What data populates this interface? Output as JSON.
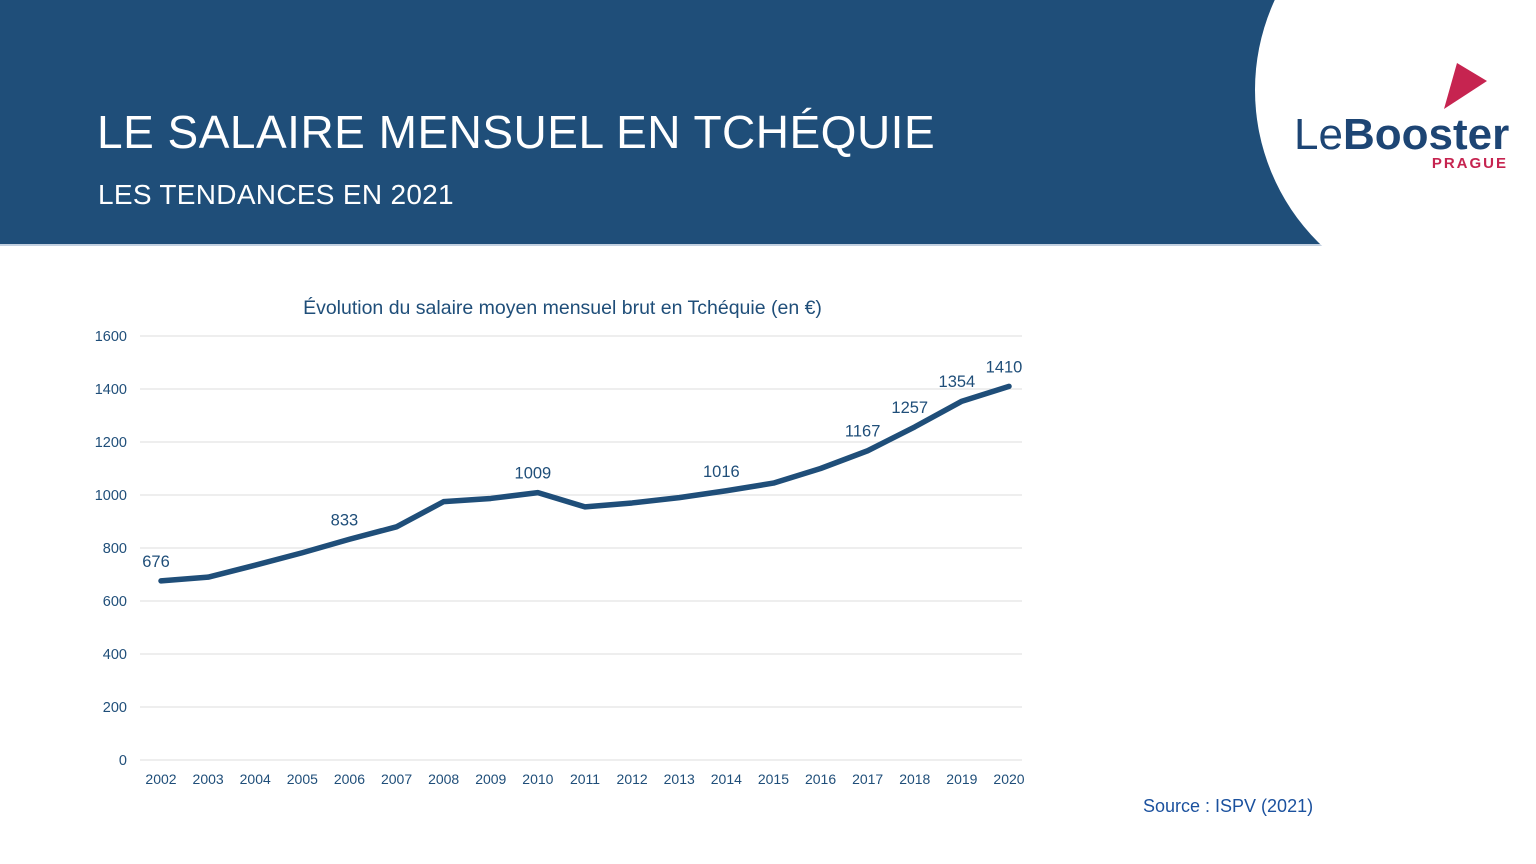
{
  "header": {
    "title": "LE SALAIRE MENSUEL EN TCHÉQUIE",
    "subtitle": "LES TENDANCES EN 2021",
    "background_color": "#1F4E79"
  },
  "logo": {
    "part1": "Le",
    "part2": "Booster",
    "city": "PRAGUE",
    "flame_icon": "red-flame-triangle",
    "navy_color": "#1D4574",
    "red_color": "#C62450"
  },
  "chart_data": {
    "type": "line",
    "title": "Évolution du salaire moyen mensuel brut en Tchéquie (en €)",
    "x": [
      2002,
      2003,
      2004,
      2005,
      2006,
      2007,
      2008,
      2009,
      2010,
      2011,
      2012,
      2013,
      2014,
      2015,
      2016,
      2017,
      2018,
      2019,
      2020
    ],
    "values": [
      676,
      690,
      735,
      782,
      833,
      880,
      975,
      987,
      1009,
      955,
      970,
      990,
      1016,
      1045,
      1100,
      1167,
      1257,
      1354,
      1410
    ],
    "point_labels": [
      676,
      null,
      null,
      null,
      833,
      null,
      null,
      null,
      1009,
      null,
      null,
      null,
      1016,
      null,
      null,
      1167,
      1257,
      1354,
      1410
    ],
    "xlabel": "",
    "ylabel": "",
    "ylim": [
      0,
      1600
    ],
    "yticks": [
      0,
      200,
      400,
      600,
      800,
      1000,
      1200,
      1400,
      1600
    ],
    "grid": true,
    "legend": "none",
    "line_color": "#1F4E79",
    "grid_color": "#E4E4E4",
    "axis_text_color": "#1F4E79"
  },
  "source": {
    "text": "Source : ISPV (2021)"
  }
}
